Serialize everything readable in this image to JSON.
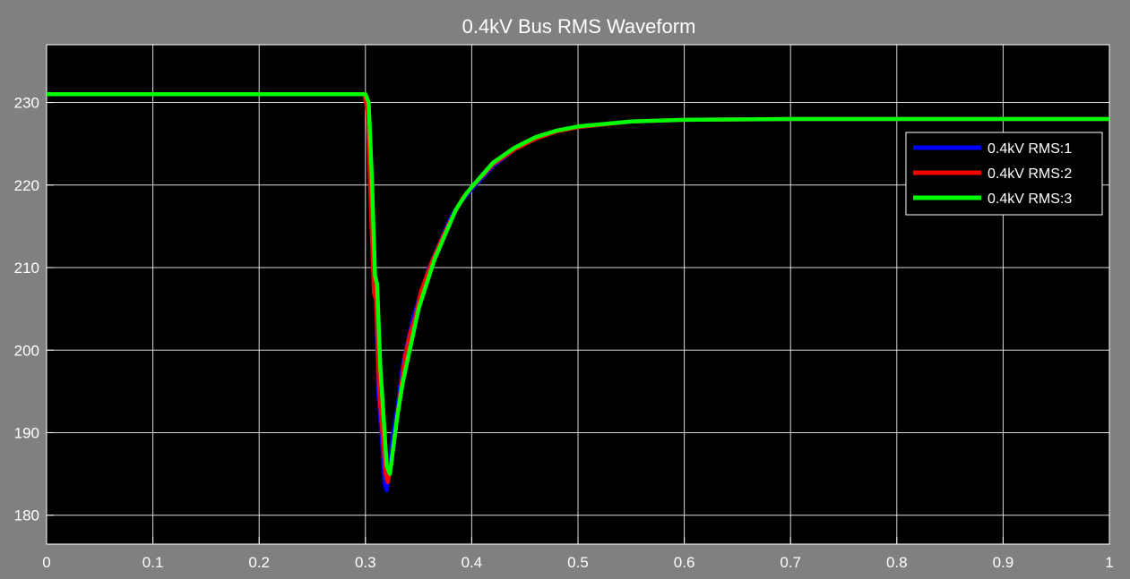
{
  "chart_data": {
    "type": "line",
    "title": "0.4kV Bus RMS Waveform",
    "xlabel": "",
    "ylabel": "",
    "xlim": [
      0,
      1
    ],
    "ylim": [
      176.5,
      237
    ],
    "xticks": [
      0,
      0.1,
      0.2,
      0.3,
      0.4,
      0.5,
      0.6,
      0.7,
      0.8,
      0.9,
      1
    ],
    "xtick_labels": [
      "0",
      "0.1",
      "0.2",
      "0.3",
      "0.4",
      "0.5",
      "0.6",
      "0.7",
      "0.8",
      "0.9",
      "1"
    ],
    "yticks": [
      180,
      190,
      200,
      210,
      220,
      230
    ],
    "ytick_labels": [
      "180",
      "190",
      "200",
      "210",
      "220",
      "230"
    ],
    "grid": true,
    "legend_position": "upper-right",
    "colors": {
      "figure_bg": "#808080",
      "axes_bg": "#000000",
      "grid": "#ffffff",
      "text": "#ffffff"
    },
    "series": [
      {
        "name": "0.4kV RMS:1",
        "color": "#0000ff",
        "x": [
          0,
          0.3,
          0.302,
          0.305,
          0.308,
          0.31,
          0.312,
          0.315,
          0.318,
          0.32,
          0.322,
          0.325,
          0.33,
          0.335,
          0.34,
          0.345,
          0.35,
          0.36,
          0.37,
          0.38,
          0.39,
          0.4,
          0.42,
          0.44,
          0.46,
          0.48,
          0.5,
          0.55,
          0.6,
          0.7,
          0.8,
          0.9,
          1.0
        ],
        "y": [
          231,
          231,
          230,
          219,
          208,
          207,
          195,
          190,
          184,
          183,
          185,
          189,
          193,
          198,
          201,
          204,
          206,
          210,
          213,
          216,
          218,
          219.5,
          222.3,
          224.3,
          225.6,
          226.5,
          227,
          227.7,
          227.9,
          228,
          228,
          228,
          228
        ]
      },
      {
        "name": "0.4kV RMS:2",
        "color": "#ff0000",
        "x": [
          0,
          0.299,
          0.302,
          0.305,
          0.308,
          0.31,
          0.313,
          0.316,
          0.319,
          0.321,
          0.324,
          0.327,
          0.332,
          0.337,
          0.342,
          0.347,
          0.352,
          0.362,
          0.372,
          0.382,
          0.392,
          0.402,
          0.42,
          0.44,
          0.46,
          0.48,
          0.5,
          0.55,
          0.6,
          0.7,
          0.8,
          0.9,
          1.0
        ],
        "y": [
          231,
          231,
          229,
          218,
          207,
          206,
          195,
          190,
          185,
          184,
          186,
          189,
          194,
          199,
          202,
          204,
          207,
          210.5,
          213.5,
          216.2,
          218.5,
          220,
          222.5,
          224.3,
          225.6,
          226.5,
          227,
          227.7,
          227.9,
          228,
          228,
          228,
          228
        ]
      },
      {
        "name": "0.4kV RMS:3",
        "color": "#00ff00",
        "x": [
          0,
          0.3,
          0.303,
          0.306,
          0.309,
          0.311,
          0.314,
          0.317,
          0.32,
          0.323,
          0.326,
          0.33,
          0.335,
          0.34,
          0.345,
          0.35,
          0.355,
          0.365,
          0.375,
          0.385,
          0.395,
          0.405,
          0.42,
          0.44,
          0.46,
          0.48,
          0.5,
          0.55,
          0.6,
          0.7,
          0.8,
          0.9,
          1.0
        ],
        "y": [
          231,
          231,
          230,
          221,
          209,
          208,
          198,
          192,
          186,
          185,
          188,
          192,
          196,
          199,
          202,
          205,
          207,
          211,
          214,
          217,
          219,
          220.5,
          222.7,
          224.5,
          225.8,
          226.6,
          227.1,
          227.7,
          227.9,
          228,
          228,
          228,
          228
        ]
      }
    ]
  }
}
